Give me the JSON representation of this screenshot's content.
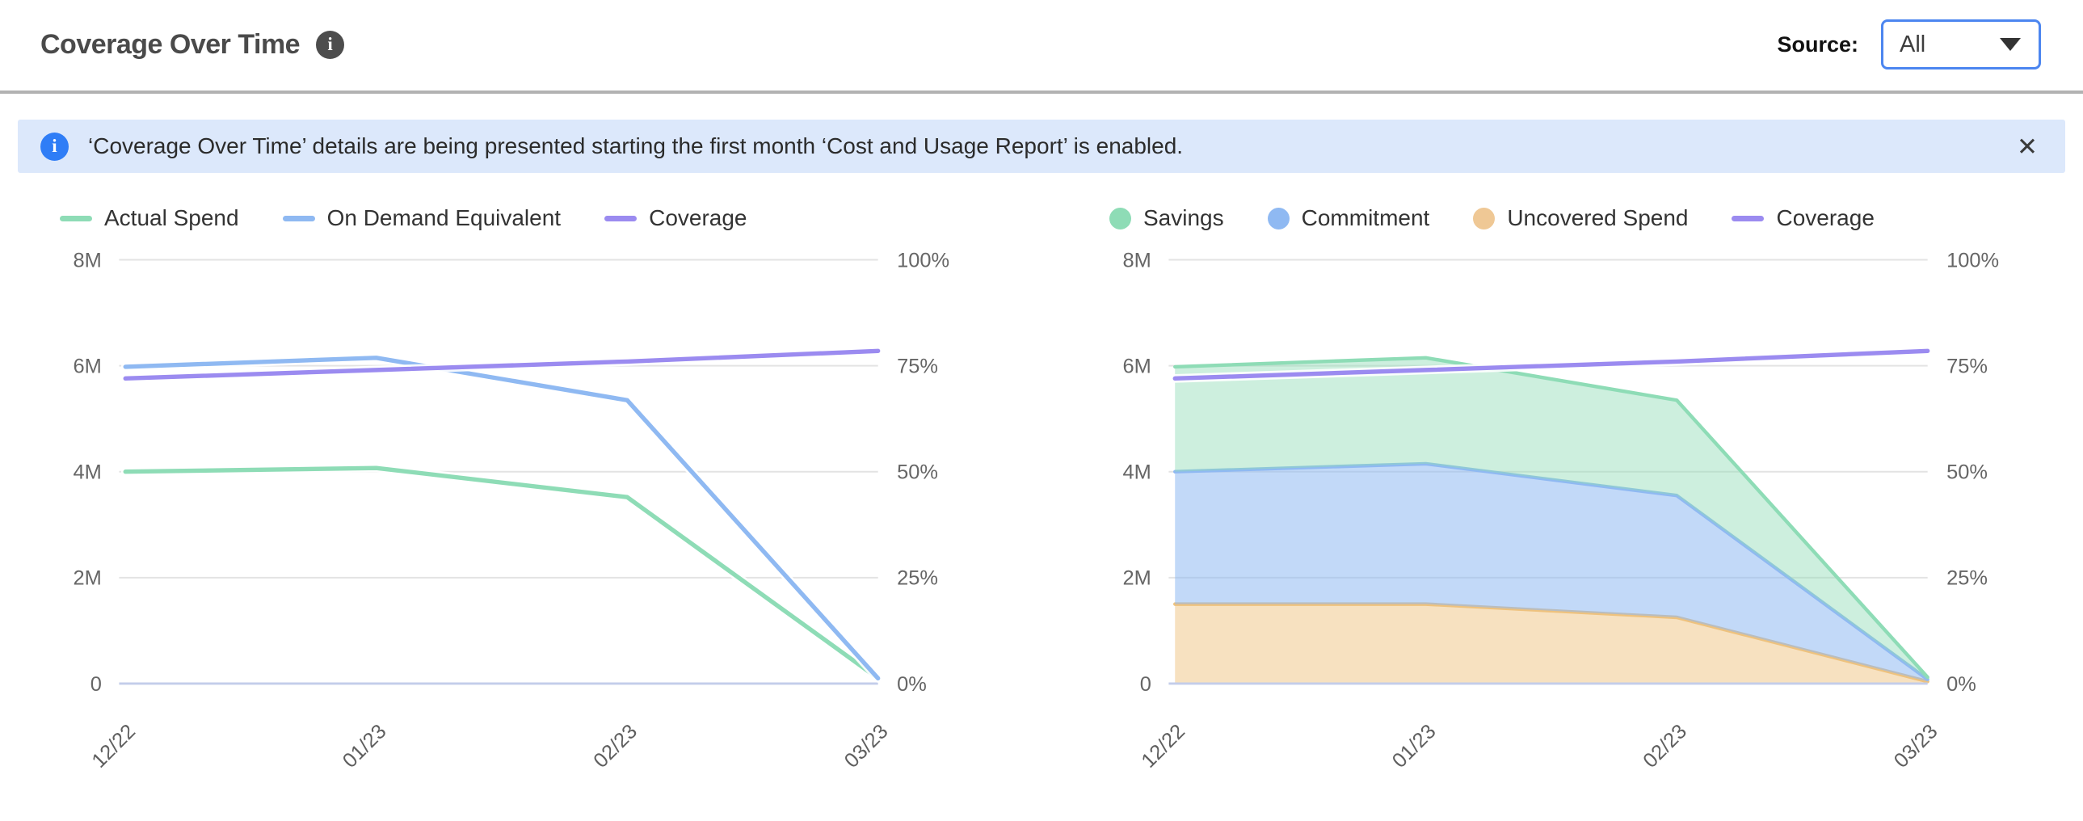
{
  "header": {
    "title": "Coverage Over Time",
    "info_icon": "i",
    "source_label": "Source:",
    "source_value": "All"
  },
  "banner": {
    "icon": "i",
    "message": "‘Coverage Over Time’ details are being presented starting the first month ‘Cost and Usage Report’ is enabled.",
    "close": "✕"
  },
  "colors": {
    "green": "#8edcb6",
    "blue": "#8fb9f2",
    "purple": "#9b8bf0",
    "orange": "#efc895",
    "green_fill": "rgba(144,220,182,0.45)",
    "blue_fill": "rgba(143,185,242,0.55)",
    "orange_fill": "rgba(242,209,158,0.65)",
    "gridline": "#e3e3e3",
    "baseline": "#c3cdea",
    "tick_text": "#666666",
    "banner_bg": "#dce8fb",
    "accent_blue": "#4c86f0"
  },
  "chart_data": [
    {
      "type": "line",
      "title": "",
      "categories": [
        "12/22",
        "01/23",
        "02/23",
        "03/23"
      ],
      "y_left": {
        "label": "",
        "range": [
          0,
          8000000
        ],
        "ticks": [
          "0",
          "2M",
          "4M",
          "6M",
          "8M"
        ]
      },
      "y_right": {
        "label": "",
        "range": [
          0,
          100
        ],
        "ticks": [
          "0%",
          "25%",
          "50%",
          "75%",
          "100%"
        ]
      },
      "grid": true,
      "legend_position": "top",
      "legend": [
        {
          "label": "Actual Spend",
          "marker": "line",
          "color": "#8edcb6"
        },
        {
          "label": "On Demand Equivalent",
          "marker": "line",
          "color": "#8fb9f2"
        },
        {
          "label": "Coverage",
          "marker": "line",
          "color": "#9b8bf0"
        }
      ],
      "series": [
        {
          "name": "Actual Spend",
          "type": "line",
          "axis": "left",
          "color": "#8edcb6",
          "values": [
            4000000,
            4070000,
            3520000,
            100000
          ]
        },
        {
          "name": "On Demand Equivalent",
          "type": "line",
          "axis": "left",
          "color": "#8fb9f2",
          "values": [
            5980000,
            6150000,
            5350000,
            100000
          ]
        },
        {
          "name": "Coverage",
          "type": "line",
          "axis": "right",
          "color": "#9b8bf0",
          "values": [
            72,
            74,
            76,
            78.5
          ]
        }
      ]
    },
    {
      "type": "area",
      "title": "",
      "categories": [
        "12/22",
        "01/23",
        "02/23",
        "03/23"
      ],
      "y_left": {
        "label": "",
        "range": [
          0,
          8000000
        ],
        "ticks": [
          "0",
          "2M",
          "4M",
          "6M",
          "8M"
        ]
      },
      "y_right": {
        "label": "",
        "range": [
          0,
          100
        ],
        "ticks": [
          "0%",
          "25%",
          "50%",
          "75%",
          "100%"
        ]
      },
      "grid": true,
      "legend_position": "top",
      "legend": [
        {
          "label": "Savings",
          "marker": "dot",
          "color": "#8edcb6"
        },
        {
          "label": "Commitment",
          "marker": "dot",
          "color": "#8fb9f2"
        },
        {
          "label": "Uncovered Spend",
          "marker": "dot",
          "color": "#efc895"
        },
        {
          "label": "Coverage",
          "marker": "line",
          "color": "#9b8bf0"
        }
      ],
      "series": [
        {
          "name": "Uncovered Spend",
          "type": "area",
          "stack": true,
          "axis": "left",
          "color": "#eec27e",
          "fill": "rgba(242,209,158,0.65)",
          "values": [
            1500000,
            1500000,
            1250000,
            40000
          ]
        },
        {
          "name": "Commitment",
          "type": "area",
          "stack": true,
          "axis": "left",
          "color": "#8fb9f2",
          "fill": "rgba(143,185,242,0.55)",
          "values": [
            2500000,
            2650000,
            2300000,
            40000
          ]
        },
        {
          "name": "Savings",
          "type": "area",
          "stack": true,
          "axis": "left",
          "color": "#8edcb6",
          "fill": "rgba(144,220,182,0.45)",
          "values": [
            1980000,
            2000000,
            1800000,
            40000
          ]
        },
        {
          "name": "Coverage",
          "type": "line",
          "axis": "right",
          "color": "#9b8bf0",
          "values": [
            72,
            74,
            76,
            78.5
          ]
        }
      ]
    }
  ]
}
